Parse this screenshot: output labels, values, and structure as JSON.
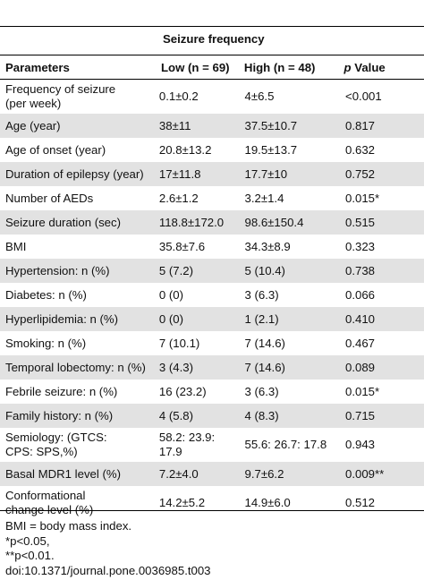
{
  "table": {
    "group_header": "Seizure frequency",
    "headers": {
      "parameters": "Parameters",
      "low": "Low (n = 69)",
      "high": "High (n = 48)",
      "p_italic": "p",
      "p_rest": " Value"
    },
    "rows": [
      {
        "param": [
          "Frequency of seizure",
          "(per week)"
        ],
        "low": "0.1±0.2",
        "high": "4±6.5",
        "p": "<0.001",
        "alt": false
      },
      {
        "param": [
          "Age (year)"
        ],
        "low": "38±11",
        "high": "37.5±10.7",
        "p": "0.817",
        "alt": true
      },
      {
        "param": [
          "Age of onset (year)"
        ],
        "low": "20.8±13.2",
        "high": "19.5±13.7",
        "p": "0.632",
        "alt": false
      },
      {
        "param": [
          "Duration of epilepsy (year)"
        ],
        "low": "17±11.8",
        "high": "17.7±10",
        "p": "0.752",
        "alt": true
      },
      {
        "param": [
          "Number of AEDs"
        ],
        "low": "2.6±1.2",
        "high": "3.2±1.4",
        "p": "0.015*",
        "alt": false
      },
      {
        "param": [
          "Seizure duration (sec)"
        ],
        "low": "118.8±172.0",
        "high": "98.6±150.4",
        "p": "0.515",
        "alt": true
      },
      {
        "param": [
          "BMI"
        ],
        "low": "35.8±7.6",
        "high": "34.3±8.9",
        "p": "0.323",
        "alt": false
      },
      {
        "param": [
          "Hypertension: n (%)"
        ],
        "low": "5 (7.2)",
        "high": "5 (10.4)",
        "p": "0.738",
        "alt": true
      },
      {
        "param": [
          "Diabetes: n (%)"
        ],
        "low": "0 (0)",
        "high": "3 (6.3)",
        "p": "0.066",
        "alt": false
      },
      {
        "param": [
          "Hyperlipidemia: n (%)"
        ],
        "low": "0 (0)",
        "high": "1 (2.1)",
        "p": "0.410",
        "alt": true
      },
      {
        "param": [
          "Smoking: n (%)"
        ],
        "low": "7 (10.1)",
        "high": "7 (14.6)",
        "p": "0.467",
        "alt": false
      },
      {
        "param": [
          "Temporal lobectomy: n (%)"
        ],
        "low": "3 (4.3)",
        "high": "7 (14.6)",
        "p": "0.089",
        "alt": true
      },
      {
        "param": [
          "Febrile seizure: n (%)"
        ],
        "low": "16 (23.2)",
        "high": "3 (6.3)",
        "p": "0.015*",
        "alt": false
      },
      {
        "param": [
          "Family history: n (%)"
        ],
        "low": "4 (5.8)",
        "high": "4 (8.3)",
        "p": "0.715",
        "alt": true
      },
      {
        "param": [
          "Semiology: (GTCS:",
          "CPS: SPS,%)"
        ],
        "low": "58.2: 23.9: 17.9",
        "high": "55.6: 26.7: 17.8",
        "p": "0.943",
        "alt": false
      },
      {
        "param": [
          "Basal MDR1 level (%)"
        ],
        "low": "7.2±4.0",
        "high": "9.7±6.2",
        "p": "0.009**",
        "alt": true
      },
      {
        "param": [
          "Conformational",
          "change level (%)"
        ],
        "low": "14.2±5.2",
        "high": "14.9±6.0",
        "p": "0.512",
        "alt": false
      }
    ]
  },
  "footnotes": [
    "BMI = body mass index.",
    "*p<0.05,",
    "**p<0.01.",
    "doi:10.1371/journal.pone.0036985.t003"
  ],
  "colors": {
    "stripe": "#e2e2e2",
    "rule": "#000000"
  }
}
